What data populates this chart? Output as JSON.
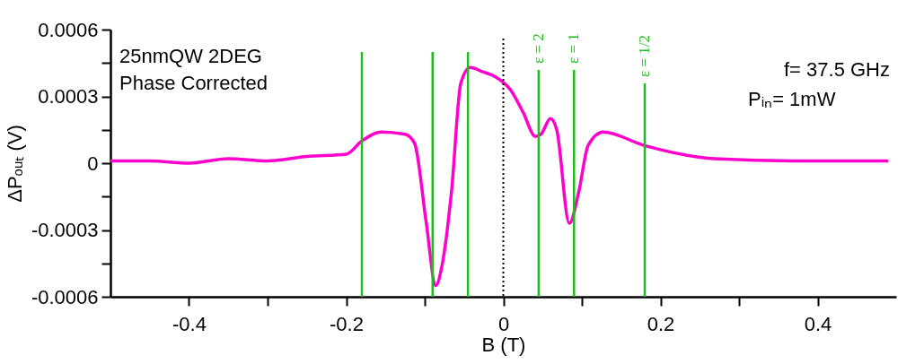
{
  "chart_data": {
    "type": "line",
    "xlabel": "B (T)",
    "ylabel": "ΔPₒᵤₜ (V)",
    "xlim": [
      -0.5,
      0.5
    ],
    "ylim": [
      -0.0006,
      0.0006
    ],
    "xticks": [
      -0.4,
      {
        "value": -0.3,
        "label": null
      },
      -0.2,
      {
        "value": -0.1,
        "label": null
      },
      0,
      {
        "value": 0.1,
        "label": null
      },
      0.2,
      {
        "value": 0.3,
        "label": null
      },
      0.4
    ],
    "yticks": [
      -0.0006,
      {
        "value": -0.00045,
        "label": null
      },
      -0.0003,
      {
        "value": -0.00015,
        "label": null
      },
      0,
      {
        "value": 0.00015,
        "label": null
      },
      0.0003,
      {
        "value": 0.00045,
        "label": null
      },
      0.0006
    ],
    "grid": false,
    "marker": "none",
    "line_style": "solid",
    "annotations": [
      "25nmQW 2DEG",
      "Phase Corrected",
      "f= 37.5 GHz",
      "Pᵢₙ= 1mW",
      "ε = 2",
      "ε = 1",
      "ε = 1/2"
    ],
    "ref_lines": [
      {
        "axis": "x",
        "value": -0.18,
        "label": null,
        "color": "#22bb22"
      },
      {
        "axis": "x",
        "value": -0.09,
        "label": null,
        "color": "#22bb22"
      },
      {
        "axis": "x",
        "value": -0.045,
        "label": null,
        "color": "#22bb22"
      },
      {
        "axis": "x",
        "value": 0,
        "label": null,
        "color": "#000000",
        "line_style": "dotted"
      },
      {
        "axis": "x",
        "value": 0.045,
        "label": null,
        "color": "#22bb22"
      },
      {
        "axis": "x",
        "value": 0.09,
        "label": null,
        "color": "#22bb22"
      },
      {
        "axis": "x",
        "value": 0.18,
        "label": null,
        "color": "#22bb22"
      }
    ],
    "series": [
      {
        "color": "#ff00cc",
        "x": [
          -0.5,
          -0.45,
          -0.4,
          -0.35,
          -0.3,
          -0.25,
          -0.2,
          -0.18,
          -0.155,
          -0.125,
          -0.113,
          -0.098,
          -0.086,
          -0.078,
          -0.066,
          -0.054,
          -0.042,
          -0.026,
          -0.011,
          0.009,
          0.025,
          0.041,
          0.048,
          0.06,
          0.068,
          0.084,
          0.096,
          0.108,
          0.127,
          0.179,
          0.269,
          0.369,
          0.49
        ],
        "values": [
          1e-05,
          1e-05,
          0.0,
          2e-05,
          1e-05,
          3e-05,
          4e-05,
          0.0001,
          0.00014,
          0.00013,
          9e-05,
          -0.00027,
          -0.00055,
          -0.00046,
          -0.00013,
          0.00036,
          0.00043,
          0.00041,
          0.00039,
          0.00033,
          0.00023,
          0.00012,
          0.00013,
          0.0002,
          0.00015,
          -0.00027,
          -0.00013,
          8e-05,
          0.00014,
          8e-05,
          2e-05,
          1e-05,
          1e-05
        ]
      }
    ]
  }
}
